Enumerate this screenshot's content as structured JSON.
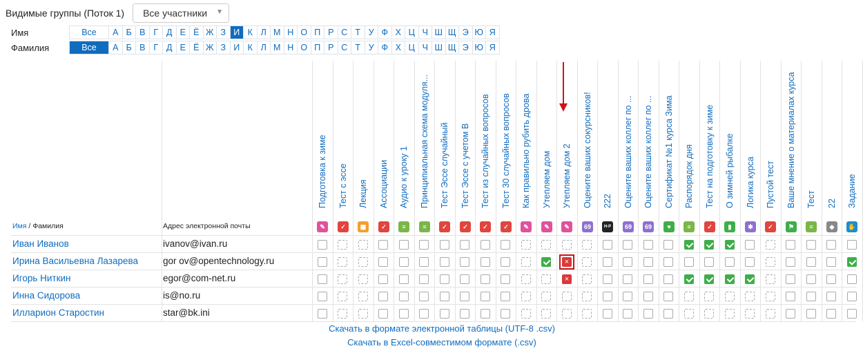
{
  "groups": {
    "label": "Видимые группы (Поток 1)",
    "selected": "Все участники"
  },
  "filters": {
    "first_name_label": "Имя",
    "last_name_label": "Фамилия",
    "all_label": "Все",
    "letters": [
      "А",
      "Б",
      "В",
      "Г",
      "Д",
      "Е",
      "Ё",
      "Ж",
      "З",
      "И",
      "К",
      "Л",
      "М",
      "Н",
      "О",
      "П",
      "Р",
      "С",
      "Т",
      "У",
      "Ф",
      "Х",
      "Ц",
      "Ч",
      "Ш",
      "Щ",
      "Э",
      "Ю",
      "Я"
    ],
    "first_name_active": "И",
    "last_name_active": "Все"
  },
  "table": {
    "header_first": "Имя",
    "header_sep": " / ",
    "header_last": "Фамилия",
    "header_email": "Адрес электронной почты",
    "activities": [
      {
        "title": "Подготовка к зиме",
        "icon": "lesson-icon",
        "color": "#e0529c",
        "glyph": "✎"
      },
      {
        "title": "Тест с эссе",
        "icon": "quiz-icon",
        "color": "#e0453f",
        "glyph": "✓"
      },
      {
        "title": "Лекция",
        "icon": "lecture-icon",
        "color": "#f0a030",
        "glyph": "▦"
      },
      {
        "title": "Ассоциации",
        "icon": "quiz-icon",
        "color": "#e0453f",
        "glyph": "✓"
      },
      {
        "title": "Аудио к уроку 1",
        "icon": "file-icon",
        "color": "#7ab648",
        "glyph": "≡"
      },
      {
        "title": "Принципиальная схема модуля...",
        "icon": "file-icon",
        "color": "#7ab648",
        "glyph": "≡"
      },
      {
        "title": "Тест Эссе случайный",
        "icon": "quiz-icon",
        "color": "#e0453f",
        "glyph": "✓"
      },
      {
        "title": "Тест Эссе с учетом В",
        "icon": "quiz-icon",
        "color": "#e0453f",
        "glyph": "✓"
      },
      {
        "title": "Тест из случайных вопросов",
        "icon": "quiz-icon",
        "color": "#e0453f",
        "glyph": "✓"
      },
      {
        "title": "Тест 30 случайных вопросов",
        "icon": "quiz-icon",
        "color": "#e0453f",
        "glyph": "✓"
      },
      {
        "title": "Как правильно рубить дрова",
        "icon": "lesson-icon",
        "color": "#e0529c",
        "glyph": "✎"
      },
      {
        "title": "Утепляем дом",
        "icon": "lesson-icon",
        "color": "#e0529c",
        "glyph": "✎"
      },
      {
        "title": "Утепляем дом 2",
        "icon": "lesson-icon",
        "color": "#e0529c",
        "glyph": "✎"
      },
      {
        "title": "Оцените ваших сокурсников!",
        "icon": "workshop-icon",
        "color": "#8e6fd1",
        "glyph": "69"
      },
      {
        "title": "222",
        "icon": "h5p-icon",
        "color": "#222222",
        "glyph": "H-P"
      },
      {
        "title": "Оцените ваших коллег по ...",
        "icon": "workshop-icon",
        "color": "#8e6fd1",
        "glyph": "69"
      },
      {
        "title": "Оцените ваших коллег по ...",
        "icon": "workshop-icon",
        "color": "#8e6fd1",
        "glyph": "69"
      },
      {
        "title": "Сертификат №1 курса Зима",
        "icon": "certificate-icon",
        "color": "#3fae49",
        "glyph": "♥"
      },
      {
        "title": "Распорядок дня",
        "icon": "file-icon",
        "color": "#7ab648",
        "glyph": "≡"
      },
      {
        "title": "Тест на подготовку к зиме",
        "icon": "quiz-icon",
        "color": "#e0453f",
        "glyph": "✓"
      },
      {
        "title": "О зимней рыбалке",
        "icon": "book-icon",
        "color": "#3fae49",
        "glyph": "▮"
      },
      {
        "title": "Логика курса",
        "icon": "gear-icon",
        "color": "#8e6fd1",
        "glyph": "✱"
      },
      {
        "title": "Пустой тест",
        "icon": "quiz-icon",
        "color": "#e0453f",
        "glyph": "✓"
      },
      {
        "title": "Ваше мнение о материалах курса",
        "icon": "feedback-icon",
        "color": "#3fae49",
        "glyph": "⚑"
      },
      {
        "title": "Тест",
        "icon": "file-icon",
        "color": "#7ab648",
        "glyph": "≡"
      },
      {
        "title": "22",
        "icon": "tag-icon",
        "color": "#888888",
        "glyph": "◆"
      },
      {
        "title": "Задание",
        "icon": "assignment-icon",
        "color": "#1b8fc9",
        "glyph": "✋"
      }
    ],
    "rows": [
      {
        "name": "Иван Иванов",
        "email": "ivanov@ivan.ru",
        "states": [
          "e",
          "d",
          "d",
          "e",
          "e",
          "e",
          "e",
          "e",
          "e",
          "e",
          "d",
          "d",
          "d",
          "d",
          "e",
          "e",
          "e",
          "e",
          "ok",
          "ok",
          "ok",
          "e",
          "d",
          "e",
          "e",
          "e",
          "e"
        ]
      },
      {
        "name": "Ирина Васильевна Лазарева",
        "email": "gor       ov@opentechnology.ru",
        "states": [
          "e",
          "d",
          "d",
          "e",
          "e",
          "e",
          "e",
          "e",
          "e",
          "e",
          "d",
          "ok",
          "x",
          "d",
          "e",
          "e",
          "e",
          "e",
          "e",
          "e",
          "e",
          "e",
          "d",
          "e",
          "e",
          "e",
          "ok"
        ]
      },
      {
        "name": "Игорь Ниткин",
        "email": "egor@com-net.ru",
        "states": [
          "e",
          "d",
          "d",
          "e",
          "e",
          "e",
          "e",
          "e",
          "e",
          "e",
          "d",
          "d",
          "x",
          "d",
          "e",
          "e",
          "e",
          "e",
          "ok",
          "ok",
          "ok",
          "ok",
          "d",
          "e",
          "e",
          "e",
          "e"
        ]
      },
      {
        "name": "Инна Сидорова",
        "email": "is@no.ru",
        "states": [
          "e",
          "d",
          "d",
          "e",
          "e",
          "e",
          "e",
          "e",
          "e",
          "e",
          "d",
          "d",
          "d",
          "d",
          "e",
          "e",
          "e",
          "e",
          "d",
          "d",
          "d",
          "d",
          "d",
          "e",
          "e",
          "e",
          "e"
        ]
      },
      {
        "name": "Илларион Старостин",
        "email": "star@bk.ini",
        "states": [
          "e",
          "d",
          "d",
          "e",
          "e",
          "e",
          "e",
          "e",
          "e",
          "e",
          "d",
          "d",
          "d",
          "d",
          "e",
          "e",
          "e",
          "e",
          "d",
          "d",
          "d",
          "d",
          "d",
          "e",
          "e",
          "e",
          "e"
        ]
      }
    ]
  },
  "downloads": {
    "csv_utf8": "Скачать в формате электронной таблицы (UTF-8 .csv)",
    "csv_excel": "Скачать в Excel-совместимом формате (.csv)"
  }
}
